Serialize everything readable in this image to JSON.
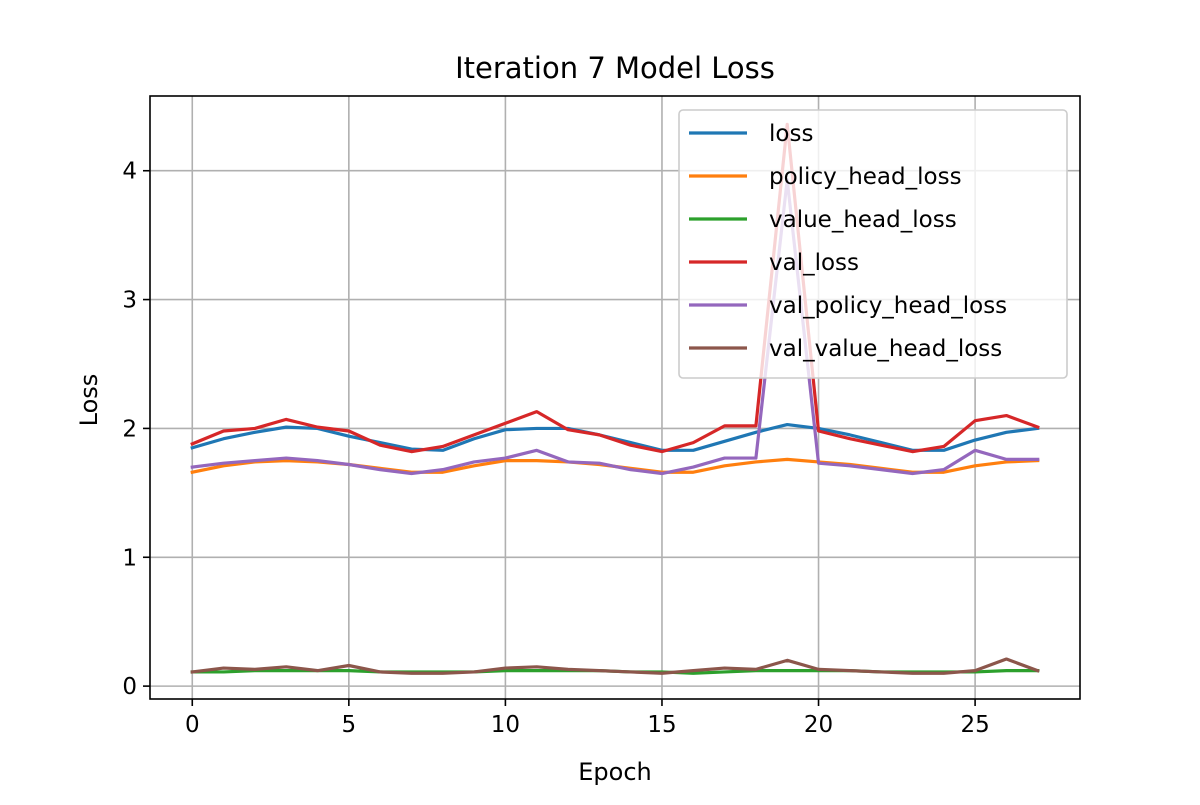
{
  "chart_data": {
    "type": "line",
    "title": "Iteration 7 Model Loss",
    "xlabel": "Epoch",
    "ylabel": "Loss",
    "xlim": [
      -1.35,
      28.35
    ],
    "ylim": [
      -0.1,
      4.58
    ],
    "xticks": [
      0,
      5,
      10,
      15,
      20,
      25
    ],
    "yticks": [
      0,
      1,
      2,
      3,
      4
    ],
    "grid": true,
    "legend_position": "top-right",
    "x": [
      0,
      1,
      2,
      3,
      4,
      5,
      6,
      7,
      8,
      9,
      10,
      11,
      12,
      13,
      14,
      15,
      16,
      17,
      18,
      19,
      20,
      21,
      22,
      23,
      24,
      25,
      26,
      27
    ],
    "series": [
      {
        "name": "loss",
        "color": "#1f77b4",
        "values": [
          1.85,
          1.92,
          1.97,
          2.01,
          2.0,
          1.94,
          1.89,
          1.84,
          1.83,
          1.92,
          1.99,
          2.0,
          2.0,
          1.95,
          1.89,
          1.83,
          1.83,
          1.9,
          1.97,
          2.03,
          2.0,
          1.95,
          1.89,
          1.83,
          1.83,
          1.91,
          1.97,
          2.0
        ]
      },
      {
        "name": "policy_head_loss",
        "color": "#ff7f0e",
        "values": [
          1.66,
          1.71,
          1.74,
          1.75,
          1.74,
          1.72,
          1.69,
          1.66,
          1.66,
          1.71,
          1.75,
          1.75,
          1.74,
          1.72,
          1.69,
          1.66,
          1.66,
          1.71,
          1.74,
          1.76,
          1.74,
          1.72,
          1.69,
          1.66,
          1.66,
          1.71,
          1.74,
          1.75
        ]
      },
      {
        "name": "value_head_loss",
        "color": "#2ca02c",
        "values": [
          0.11,
          0.11,
          0.12,
          0.12,
          0.12,
          0.12,
          0.11,
          0.11,
          0.11,
          0.11,
          0.12,
          0.12,
          0.12,
          0.12,
          0.11,
          0.11,
          0.1,
          0.11,
          0.12,
          0.12,
          0.12,
          0.12,
          0.11,
          0.11,
          0.11,
          0.11,
          0.12,
          0.12
        ]
      },
      {
        "name": "val_loss",
        "color": "#d62728",
        "values": [
          1.88,
          1.98,
          2.0,
          2.07,
          2.01,
          1.98,
          1.87,
          1.82,
          1.86,
          1.95,
          2.04,
          2.13,
          1.99,
          1.95,
          1.87,
          1.82,
          1.89,
          2.02,
          2.02,
          4.36,
          1.98,
          1.92,
          1.87,
          1.82,
          1.86,
          2.06,
          2.1,
          2.01
        ]
      },
      {
        "name": "val_policy_head_loss",
        "color": "#9467bd",
        "values": [
          1.7,
          1.73,
          1.75,
          1.77,
          1.75,
          1.72,
          1.68,
          1.65,
          1.68,
          1.74,
          1.77,
          1.83,
          1.74,
          1.73,
          1.68,
          1.65,
          1.7,
          1.77,
          1.77,
          3.93,
          1.73,
          1.71,
          1.68,
          1.65,
          1.68,
          1.83,
          1.76,
          1.76
        ]
      },
      {
        "name": "val_value_head_loss",
        "color": "#8c564b",
        "values": [
          0.11,
          0.14,
          0.13,
          0.15,
          0.12,
          0.16,
          0.11,
          0.1,
          0.1,
          0.11,
          0.14,
          0.15,
          0.13,
          0.12,
          0.11,
          0.1,
          0.12,
          0.14,
          0.13,
          0.2,
          0.13,
          0.12,
          0.11,
          0.1,
          0.1,
          0.12,
          0.21,
          0.12
        ]
      }
    ]
  }
}
